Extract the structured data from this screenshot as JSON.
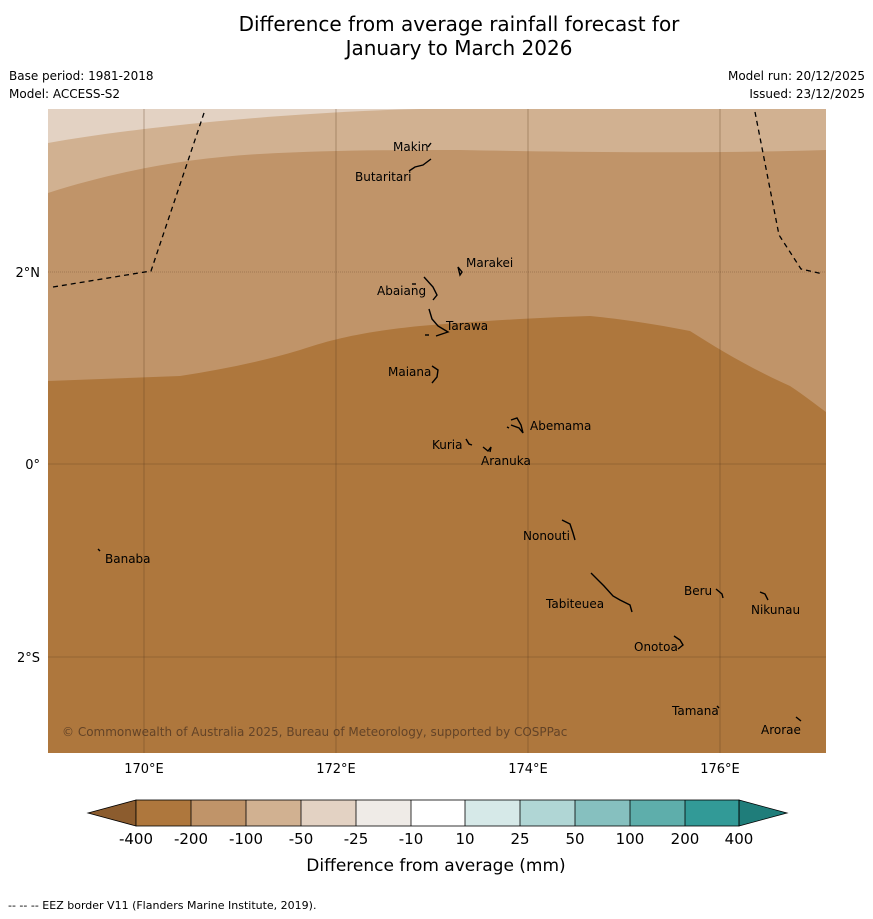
{
  "title_line1": "Difference from average rainfall forecast for",
  "title_line2": "January to March 2026",
  "meta_left": {
    "base_period": "Base period: 1981-2018",
    "model": "Model: ACCESS-S2"
  },
  "meta_right": {
    "model_run": "Model run: 20/12/2025",
    "issued": "Issued: 23/12/2025"
  },
  "map": {
    "lat_labels": [
      "2°N",
      "0°",
      "2°S"
    ],
    "lon_labels": [
      "170°E",
      "172°E",
      "174°E",
      "176°E"
    ],
    "copyright": "© Commonwealth of Australia 2025, Bureau of Meteorology, supported by COSPPac",
    "islands": [
      {
        "name": "Makin"
      },
      {
        "name": "Butaritari"
      },
      {
        "name": "Marakei"
      },
      {
        "name": "Abaiang"
      },
      {
        "name": "Tarawa"
      },
      {
        "name": "Maiana"
      },
      {
        "name": "Abemama"
      },
      {
        "name": "Kuria"
      },
      {
        "name": "Aranuka"
      },
      {
        "name": "Nonouti"
      },
      {
        "name": "Banaba"
      },
      {
        "name": "Beru"
      },
      {
        "name": "Nikunau"
      },
      {
        "name": "Tabiteuea"
      },
      {
        "name": "Onotoa"
      },
      {
        "name": "Tamana"
      },
      {
        "name": "Arorae"
      }
    ],
    "colors": {
      "band_minus400": "#ae773d",
      "band_minus200": "#c09469",
      "band_minus100": "#d1b191",
      "band_minus50": "#e3d2c3"
    }
  },
  "legend": {
    "title": "Difference from average (mm)",
    "ticks": [
      "-400",
      "-200",
      "-100",
      "-50",
      "-25",
      "-10",
      "10",
      "25",
      "50",
      "100",
      "200",
      "400"
    ],
    "colors": [
      "#8c5c2e",
      "#ae773d",
      "#c09469",
      "#d1b191",
      "#e3d2c3",
      "#efebe7",
      "#ffffff",
      "#d6e9e8",
      "#b0d6d5",
      "#86c0bf",
      "#5eaeab",
      "#329a97",
      "#1f7d7a"
    ]
  },
  "footer": "--  --  -- EEZ border V11 (Flanders Marine Institute, 2019)."
}
